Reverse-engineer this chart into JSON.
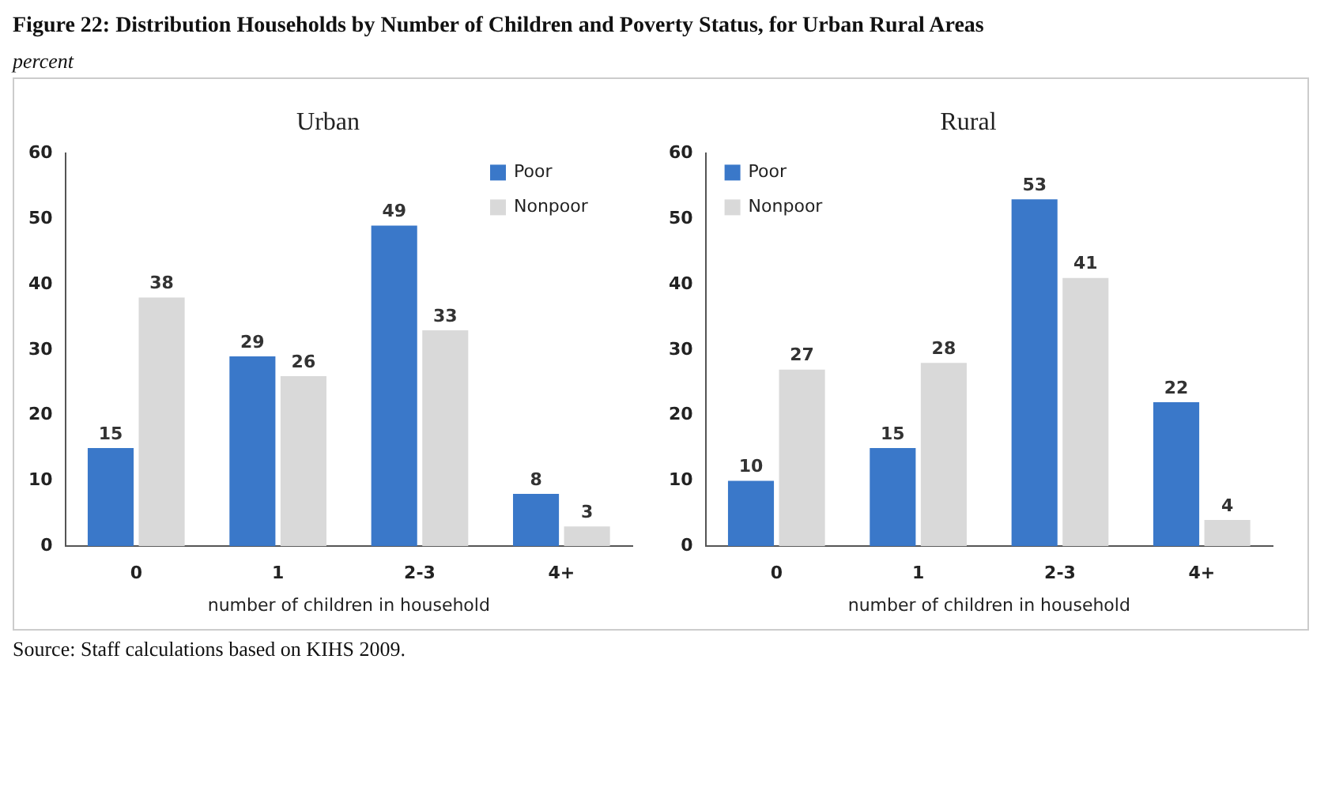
{
  "chart_data": [
    {
      "type": "bar",
      "title": "Urban",
      "annotations": [
        "Figure 22: Distribution Households by Number of Children and Poverty Status, for Urban Rural Areas",
        "Source: Staff calculations based on KIHS 2009."
      ],
      "ylabel": "percent",
      "xlabel": "number of children in household",
      "categories": [
        "0",
        "1",
        "2-3",
        "4+"
      ],
      "series": [
        {
          "name": "Poor",
          "color": "#3a78c9",
          "values": [
            15,
            29,
            49,
            8
          ]
        },
        {
          "name": "Nonpoor",
          "color": "#d9d9d9",
          "values": [
            38,
            26,
            33,
            3
          ]
        }
      ],
      "ylim": [
        0,
        60
      ],
      "yticks": [
        0,
        10,
        20,
        30,
        40,
        50,
        60
      ],
      "grid": false,
      "legend": "top right",
      "data_labels": true
    },
    {
      "type": "bar",
      "title": "Rural",
      "xlabel": "number of children in household",
      "categories": [
        "0",
        "1",
        "2-3",
        "4+"
      ],
      "series": [
        {
          "name": "Poor",
          "color": "#3a78c9",
          "values": [
            10,
            15,
            53,
            22
          ]
        },
        {
          "name": "Nonpoor",
          "color": "#d9d9d9",
          "values": [
            27,
            28,
            41,
            4
          ]
        }
      ],
      "ylim": [
        0,
        60
      ],
      "yticks": [
        0,
        10,
        20,
        30,
        40,
        50,
        60
      ],
      "grid": false,
      "legend": "top left",
      "data_labels": true
    }
  ]
}
